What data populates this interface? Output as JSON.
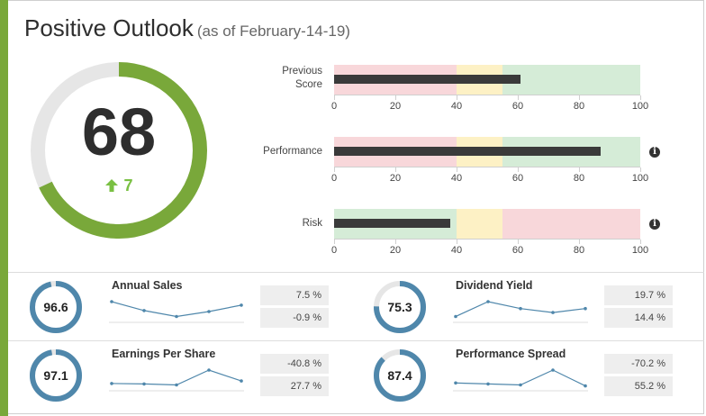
{
  "header": {
    "title": "Positive Outlook",
    "subtitle": "(as of February-14-19)"
  },
  "score": {
    "value": "68",
    "fraction": 0.68,
    "delta": "7",
    "delta_direction": "up",
    "delta_icon": "arrow-up-icon"
  },
  "colors": {
    "accent": "#79a83a",
    "arc_track": "#e6e6e6",
    "good": "#d5ecd7",
    "neutral": "#fdf1c5",
    "bad": "#f8d7da",
    "bar": "#3a3a3a",
    "ring": "#4f87ab",
    "delta": "#7ac043"
  },
  "bullets": [
    {
      "label_lines": [
        "Previous",
        "Score"
      ],
      "value": 61,
      "zones": [
        {
          "from": 0,
          "to": 40,
          "kind": "bad"
        },
        {
          "from": 40,
          "to": 55,
          "kind": "neutral"
        },
        {
          "from": 55,
          "to": 100,
          "kind": "good"
        }
      ],
      "ticks": [
        "0",
        "20",
        "40",
        "60",
        "80",
        "100"
      ],
      "info": false
    },
    {
      "label_lines": [
        "Performance"
      ],
      "value": 87,
      "zones": [
        {
          "from": 0,
          "to": 40,
          "kind": "bad"
        },
        {
          "from": 40,
          "to": 55,
          "kind": "neutral"
        },
        {
          "from": 55,
          "to": 100,
          "kind": "good"
        }
      ],
      "ticks": [
        "0",
        "20",
        "40",
        "60",
        "80",
        "100"
      ],
      "info": true,
      "info_icon": "info-icon"
    },
    {
      "label_lines": [
        "Risk"
      ],
      "value": 38,
      "zones": [
        {
          "from": 0,
          "to": 40,
          "kind": "good"
        },
        {
          "from": 40,
          "to": 55,
          "kind": "neutral"
        },
        {
          "from": 55,
          "to": 100,
          "kind": "bad"
        }
      ],
      "ticks": [
        "0",
        "20",
        "40",
        "60",
        "80",
        "100"
      ],
      "info": true,
      "info_icon": "info-icon"
    }
  ],
  "metrics": [
    {
      "title": "Annual Sales",
      "value": "96.6",
      "fraction": 0.966,
      "change1": "7.5 %",
      "change2": "-0.9 %",
      "spark": [
        4,
        2.2,
        1,
        2,
        3.3
      ]
    },
    {
      "title": "Dividend Yield",
      "value": "75.3",
      "fraction": 0.753,
      "change1": "19.7 %",
      "change2": "14.4 %",
      "spark": [
        1,
        4,
        2.6,
        1.8,
        2.6
      ]
    },
    {
      "title": "Earnings Per Share",
      "value": "97.1",
      "fraction": 0.971,
      "change1": "-40.8 %",
      "change2": "27.7 %",
      "spark": [
        1.3,
        1.2,
        1,
        4,
        1.8
      ]
    },
    {
      "title": "Performance Spread",
      "value": "87.4",
      "fraction": 0.874,
      "change1": "-70.2 %",
      "change2": "55.2 %",
      "spark": [
        1.4,
        1.2,
        1,
        4,
        0.8
      ]
    }
  ]
}
